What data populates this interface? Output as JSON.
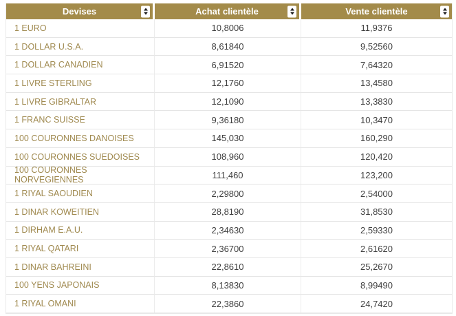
{
  "table": {
    "columns": [
      {
        "label": "Devises"
      },
      {
        "label": "Achat clientèle"
      },
      {
        "label": "Vente clientèle"
      }
    ],
    "rows": [
      {
        "devise": "1 EURO",
        "achat": "10,8006",
        "vente": "11,9376"
      },
      {
        "devise": "1 DOLLAR U.S.A.",
        "achat": "8,61840",
        "vente": "9,52560"
      },
      {
        "devise": "1 DOLLAR CANADIEN",
        "achat": "6,91520",
        "vente": "7,64320"
      },
      {
        "devise": "1 LIVRE STERLING",
        "achat": "12,1760",
        "vente": "13,4580"
      },
      {
        "devise": "1 LIVRE GIBRALTAR",
        "achat": "12,1090",
        "vente": "13,3830"
      },
      {
        "devise": "1 FRANC SUISSE",
        "achat": "9,36180",
        "vente": "10,3470"
      },
      {
        "devise": "100 COURONNES DANOISES",
        "achat": "145,030",
        "vente": "160,290"
      },
      {
        "devise": "100 COURONNES SUEDOISES",
        "achat": "108,960",
        "vente": "120,420"
      },
      {
        "devise": "100 COURONNES NORVEGIENNES",
        "achat": "111,460",
        "vente": "123,200"
      },
      {
        "devise": "1 RIYAL SAOUDIEN",
        "achat": "2,29800",
        "vente": "2,54000"
      },
      {
        "devise": "1 DINAR KOWEITIEN",
        "achat": "28,8190",
        "vente": "31,8530"
      },
      {
        "devise": "1 DIRHAM E.A.U.",
        "achat": "2,34630",
        "vente": "2,59330"
      },
      {
        "devise": "1 RIYAL QATARI",
        "achat": "2,36700",
        "vente": "2,61620"
      },
      {
        "devise": "1 DINAR BAHREINI",
        "achat": "22,8610",
        "vente": "25,2670"
      },
      {
        "devise": "100 YENS JAPONAIS",
        "achat": "8,13830",
        "vente": "8,99490"
      },
      {
        "devise": "1 RIYAL OMANI",
        "achat": "22,3860",
        "vente": "24,7420"
      }
    ],
    "colors": {
      "header_background": "#a38b4a",
      "header_text": "#ffffff",
      "devise_text": "#a08a50",
      "value_text": "#3f3f3f",
      "row_border": "#e5e5e5"
    },
    "icons": [
      {
        "name": "sort-arrows-icon",
        "glyph": "▲▼"
      }
    ]
  }
}
